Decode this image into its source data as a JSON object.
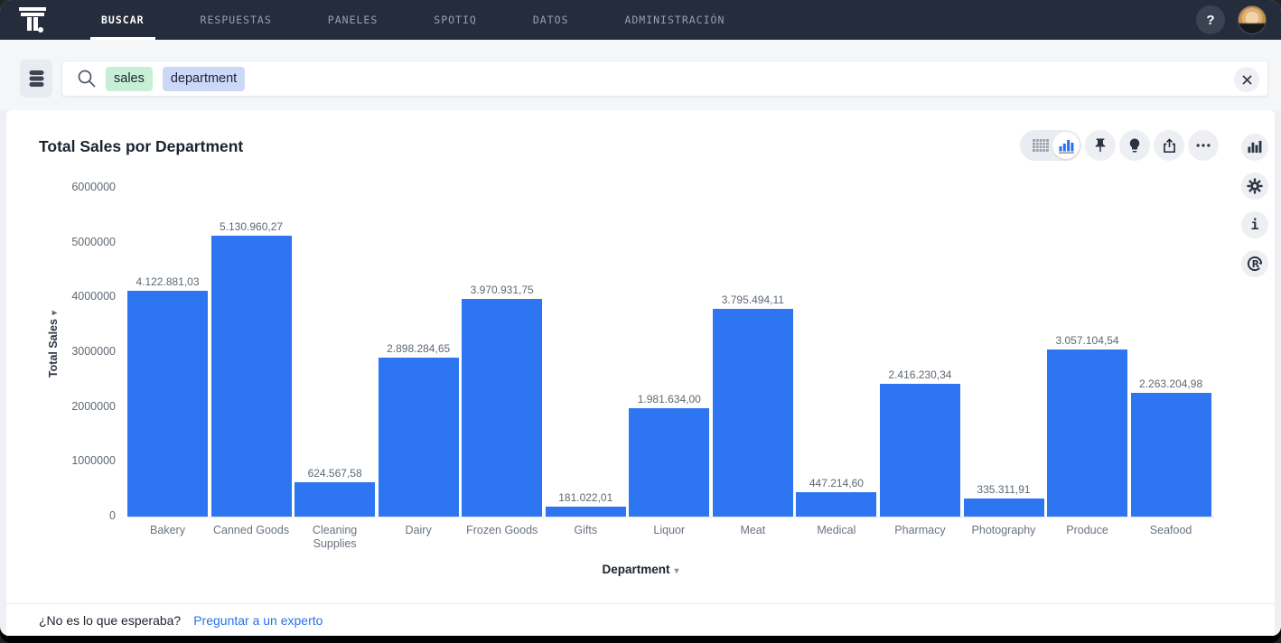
{
  "nav": {
    "brand": "thoughtspot",
    "tabs": [
      {
        "label": "BUSCAR",
        "active": true
      },
      {
        "label": "RESPUESTAS",
        "active": false
      },
      {
        "label": "PANELES",
        "active": false
      },
      {
        "label": "SPOTIQ",
        "active": false
      },
      {
        "label": "DATOS",
        "active": false
      },
      {
        "label": "ADMINISTRACIÓN",
        "active": false
      }
    ],
    "help_label": "?"
  },
  "search": {
    "source_icon": "database-icon",
    "search_icon": "search-icon",
    "tokens": [
      {
        "text": "sales",
        "color": "#C6EFD5"
      },
      {
        "text": "department",
        "color": "#CBD8F8"
      }
    ],
    "clear_icon": "x-icon"
  },
  "answer": {
    "title": "Total Sales por Department",
    "toolbar_icons": [
      "table-view-icon",
      "chart-view-icon",
      "pin-icon",
      "insight-bulb-icon",
      "share-icon",
      "more-icon"
    ],
    "side_icons": [
      "chart-config-icon",
      "settings-gear-icon",
      "info-icon",
      "r-analysis-icon"
    ],
    "info_glyph": "i",
    "r_glyph": "R"
  },
  "chart_data": {
    "type": "bar",
    "title": "Total Sales por Department",
    "xlabel": "Department",
    "ylabel": "Total Sales",
    "categories": [
      "Bakery",
      "Canned Goods",
      "Cleaning Supplies",
      "Dairy",
      "Frozen Goods",
      "Gifts",
      "Liquor",
      "Meat",
      "Medical",
      "Pharmacy",
      "Photography",
      "Produce",
      "Seafood"
    ],
    "values": [
      4122881.03,
      5130960.27,
      624567.58,
      2898284.65,
      3970931.75,
      181022.01,
      1981634.0,
      3795494.11,
      447214.6,
      2416230.34,
      335311.91,
      3057104.54,
      2263204.98
    ],
    "value_labels": [
      "4.122.881,03",
      "5.130.960,27",
      "624.567,58",
      "2.898.284,65",
      "3.970.931,75",
      "181.022,01",
      "1.981.634,00",
      "3.795.494,11",
      "447.214,60",
      "2.416.230,34",
      "335.311,91",
      "3.057.104,54",
      "2.263.204,98"
    ],
    "y_ticks": [
      0,
      1000000,
      2000000,
      3000000,
      4000000,
      5000000,
      6000000
    ],
    "ylim": [
      0,
      6000000
    ],
    "bar_color": "#2E75F2",
    "grid": false,
    "legend": false
  },
  "footer": {
    "question": "¿No es lo que esperaba?",
    "link": "Preguntar a un experto"
  },
  "colors": {
    "nav_bg": "#252C3C",
    "accent_blue": "#2770EF",
    "bar_blue": "#2E75F2",
    "link_blue": "#2770EF",
    "page_bg": "#EEF0F4",
    "token_green": "#C6EFD5",
    "token_blue": "#CBD8F8"
  }
}
